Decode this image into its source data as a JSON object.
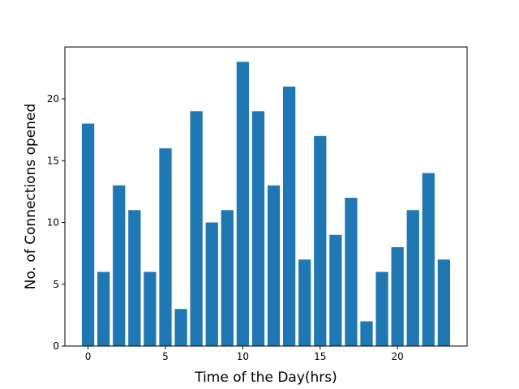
{
  "chart_data": {
    "type": "bar",
    "title": "",
    "xlabel": "Time of the Day(hrs)",
    "ylabel": "No. of Connections opened",
    "x": [
      0,
      1,
      2,
      3,
      4,
      5,
      6,
      7,
      8,
      9,
      10,
      11,
      12,
      13,
      14,
      15,
      16,
      17,
      18,
      19,
      20,
      21,
      22,
      23
    ],
    "values": [
      18,
      6,
      13,
      11,
      6,
      16,
      3,
      19,
      10,
      11,
      23,
      19,
      13,
      21,
      7,
      17,
      9,
      12,
      2,
      6,
      8,
      11,
      14,
      7
    ],
    "xlim": [
      -1.5,
      24.5
    ],
    "ylim": [
      0,
      24.2
    ],
    "x_ticks": [
      0,
      5,
      10,
      15,
      20
    ],
    "x_tick_labels": [
      "0",
      "5",
      "10",
      "15",
      "20"
    ],
    "y_ticks": [
      0,
      5,
      10,
      15,
      20
    ],
    "y_tick_labels": [
      "0",
      "5",
      "10",
      "15",
      "20"
    ],
    "bar_color": "#1f77b4",
    "grid": false,
    "legend": "none"
  }
}
